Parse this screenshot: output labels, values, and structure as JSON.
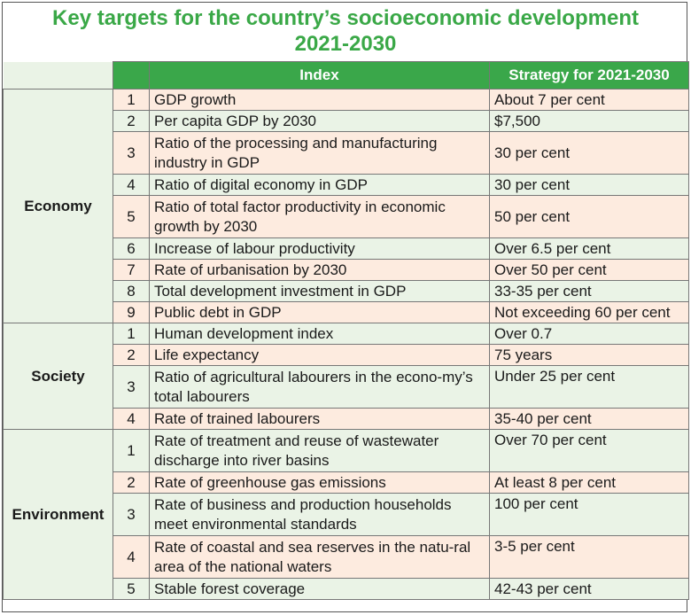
{
  "title_line1": "Key targets for the country’s socioeconomic development",
  "title_line2": "2021-2030",
  "colors": {
    "header": "#3aa74a",
    "title": "#3aa847",
    "row_peach": "#fdebdf",
    "row_green": "#eaf3e6"
  },
  "headers": {
    "index": "Index",
    "strategy": "Strategy for 2021-2030"
  },
  "groups": [
    {
      "category": "Economy",
      "rows": [
        {
          "no": "1",
          "index": "GDP growth",
          "strategy": "About 7 per cent"
        },
        {
          "no": "2",
          "index": "Per capita GDP by 2030",
          "strategy": "$7,500"
        },
        {
          "no": "3",
          "index": "Ratio of the processing and manufacturing industry in GDP",
          "strategy": "30 per cent"
        },
        {
          "no": "4",
          "index": "Ratio of digital economy in GDP",
          "strategy": "30 per cent"
        },
        {
          "no": "5",
          "index": "Ratio of total factor productivity in economic growth by 2030",
          "strategy": "50 per cent"
        },
        {
          "no": "6",
          "index": "Increase of labour productivity",
          "strategy": "Over 6.5 per cent"
        },
        {
          "no": "7",
          "index": "Rate of urbanisation by 2030",
          "strategy": "Over 50 per cent"
        },
        {
          "no": "8",
          "index": "Total development investment in GDP",
          "strategy": "33-35 per cent"
        },
        {
          "no": "9",
          "index": "Public debt in GDP",
          "strategy": "Not exceeding 60 per cent"
        }
      ]
    },
    {
      "category": "Society",
      "rows": [
        {
          "no": "1",
          "index": "Human development index",
          "strategy": "Over 0.7"
        },
        {
          "no": "2",
          "index": "Life expectancy",
          "strategy": "75 years"
        },
        {
          "no": "3",
          "index": "Ratio of agricultural labourers in the econo-my’s total labourers",
          "strategy": "Under 25 per cent"
        },
        {
          "no": "4",
          "index": "Rate of trained labourers",
          "strategy": "35-40 per cent"
        }
      ]
    },
    {
      "category": "Environment",
      "rows": [
        {
          "no": "1",
          "index": "Rate of treatment and reuse of wastewater discharge into river basins",
          "strategy": "Over 70 per cent"
        },
        {
          "no": "2",
          "index": "Rate of greenhouse gas emissions",
          "strategy": "At least 8 per cent"
        },
        {
          "no": "3",
          "index": "Rate of business and production households meet environmental standards",
          "strategy": "100 per cent"
        },
        {
          "no": "4",
          "index": "Rate of coastal and sea reserves in the natu-ral area of the national waters",
          "strategy": "3-5 per cent"
        },
        {
          "no": "5",
          "index": "Stable forest coverage",
          "strategy": "42-43 per cent"
        }
      ]
    }
  ]
}
